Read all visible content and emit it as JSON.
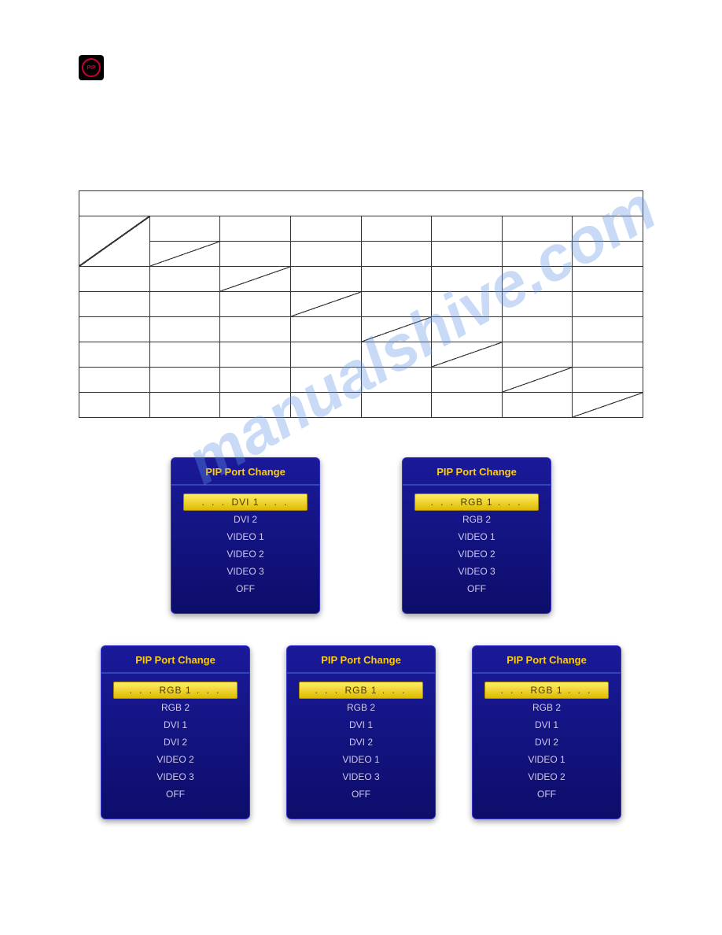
{
  "icon_label": "PIP",
  "watermark_text": "manualshive.com",
  "table": {
    "cols": 8,
    "rows": 8
  },
  "row1": {
    "dialogs": [
      {
        "title": "PIP Port Change",
        "items": [
          "DVI 1",
          "DVI 2",
          "VIDEO 1",
          "VIDEO 2",
          "VIDEO 3",
          "OFF"
        ],
        "selected_index": 0
      },
      {
        "title": "PIP Port Change",
        "items": [
          "RGB 1",
          "RGB 2",
          "VIDEO 1",
          "VIDEO 2",
          "VIDEO 3",
          "OFF"
        ],
        "selected_index": 0
      }
    ]
  },
  "row2": {
    "dialogs": [
      {
        "title": "PIP Port Change",
        "items": [
          "RGB 1",
          "RGB 2",
          "DVI 1",
          "DVI 2",
          "VIDEO 2",
          "VIDEO 3",
          "OFF"
        ],
        "selected_index": 0
      },
      {
        "title": "PIP Port Change",
        "items": [
          "RGB 1",
          "RGB 2",
          "DVI 1",
          "DVI 2",
          "VIDEO 1",
          "VIDEO 3",
          "OFF"
        ],
        "selected_index": 0
      },
      {
        "title": "PIP Port Change",
        "items": [
          "RGB 1",
          "RGB 2",
          "DVI 1",
          "DVI 2",
          "VIDEO 1",
          "VIDEO 2",
          "OFF"
        ],
        "selected_index": 0
      }
    ]
  },
  "colors": {
    "dialog_bg_top": "#1a1a9a",
    "dialog_bg_bottom": "#0d0d6a",
    "title_color": "#ffcc00",
    "item_color": "#d0c8e8",
    "selected_bg_top": "#ffee66",
    "selected_bg_bottom": "#ddbb00",
    "selected_text": "#4a3a00",
    "watermark_color": "rgba(100,150,230,0.35)",
    "pip_icon_bg": "#000000",
    "pip_icon_fg": "#cc0033",
    "table_border": "#333333"
  }
}
